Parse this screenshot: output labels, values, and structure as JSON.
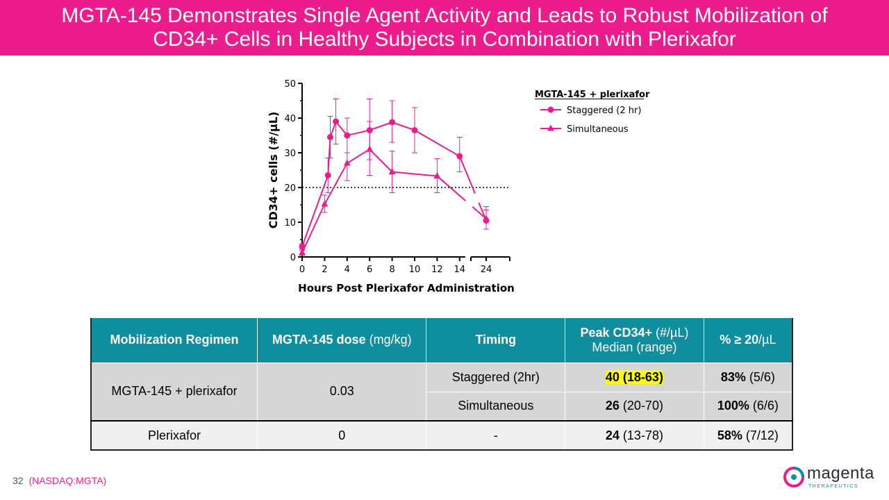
{
  "title": {
    "line1": "MGTA-145 Demonstrates Single Agent Activity and Leads to Robust Mobilization of",
    "line2": "CD34+ Cells in Healthy Subjects in Combination with Plerixafor"
  },
  "chart_data": {
    "type": "line",
    "xlabel": "Hours Post Plerixafor Administration",
    "ylabel": "CD34+ cells (#/µL)",
    "ylim": [
      0,
      50
    ],
    "yticks": [
      0,
      10,
      20,
      30,
      40,
      50
    ],
    "xticks": [
      "0",
      "2",
      "4",
      "6",
      "8",
      "10",
      "12",
      "14",
      "24"
    ],
    "threshold": 20,
    "legend": {
      "title": "MGTA-145 + plerixafor",
      "position": "top-right"
    },
    "series": [
      {
        "name": "Staggered (2 hr)",
        "marker": "circle",
        "x": [
          0,
          2.3,
          2.5,
          3,
          4,
          6,
          8,
          10,
          14,
          24
        ],
        "y": [
          3,
          23.5,
          34.5,
          39,
          35,
          36.5,
          38.8,
          36.5,
          29,
          10.5
        ],
        "err_low": [
          2.2,
          18.5,
          28.5,
          32.5,
          30,
          28,
          33,
          30,
          24.5,
          8
        ],
        "err_high": [
          3.8,
          28.5,
          40.5,
          45.5,
          40,
          45.5,
          45,
          43,
          34.5,
          13.5
        ]
      },
      {
        "name": "Simultaneous",
        "marker": "triangle",
        "x": [
          0,
          2,
          4,
          6,
          8,
          12,
          24
        ],
        "y": [
          1.2,
          15.2,
          27,
          31,
          24.5,
          23.3,
          11
        ],
        "err_low": [
          0.5,
          12.8,
          22,
          23.5,
          18.5,
          18.5,
          8
        ],
        "err_high": [
          1.8,
          17.8,
          30,
          39,
          30.5,
          28.3,
          14.5
        ]
      }
    ]
  },
  "table": {
    "headers": [
      {
        "bold": "Mobilization Regimen",
        "normal": ""
      },
      {
        "bold": "MGTA-145 dose",
        "normal": " (mg/kg)"
      },
      {
        "bold": "Timing",
        "normal": ""
      },
      {
        "bold": "Peak CD34+",
        "normal": " (#/µL)",
        "line2": "Median (range)"
      },
      {
        "bold": "% ≥ 20",
        "normal": "/µL"
      }
    ],
    "rows": [
      {
        "regimen": "MGTA-145 + plerixafor",
        "dose": "0.03",
        "timing": "Staggered (2hr)",
        "peak": "40 (18-63)",
        "pct_bold": "83%",
        "pct_rest": " (5/6)"
      },
      {
        "timing": "Simultaneous",
        "peak_bold": "26",
        "peak_rest": " (20-70)",
        "pct_bold": "100%",
        "pct_rest": " (6/6)"
      },
      {
        "regimen": "Plerixafor",
        "dose": "0",
        "timing": "-",
        "peak_bold": "24",
        "peak_rest": " (13-78)",
        "pct_bold": "58%",
        "pct_rest": " (7/12)"
      }
    ]
  },
  "footer": {
    "page": "32",
    "ticker": "(NASDAQ:MGTA)"
  },
  "logo": {
    "word": "magenta",
    "sub": "THERAPEUTICS"
  },
  "colors": {
    "accent": "#ec1c8d",
    "header_teal": "#0f8e9d",
    "highlight": "#ffff00"
  }
}
